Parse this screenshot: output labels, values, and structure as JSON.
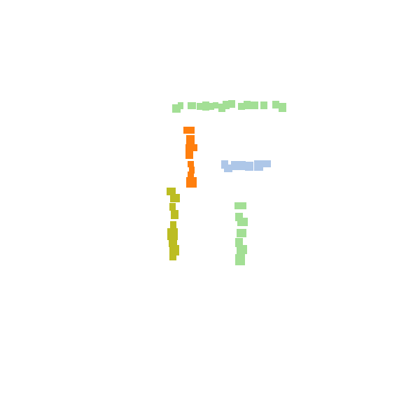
{
  "canvas": {
    "background": "#ffffff"
  },
  "strokes": [
    {
      "id": "green-top",
      "orientation": "horizontal",
      "color": "#a3df95"
    },
    {
      "id": "orange",
      "orientation": "vertical",
      "color": "#ff7f0e"
    },
    {
      "id": "blue",
      "orientation": "horizontal",
      "color": "#aec7e8"
    },
    {
      "id": "olive",
      "orientation": "vertical",
      "color": "#bcbd22"
    },
    {
      "id": "green-bottom",
      "orientation": "vertical",
      "color": "#a3df95"
    }
  ]
}
